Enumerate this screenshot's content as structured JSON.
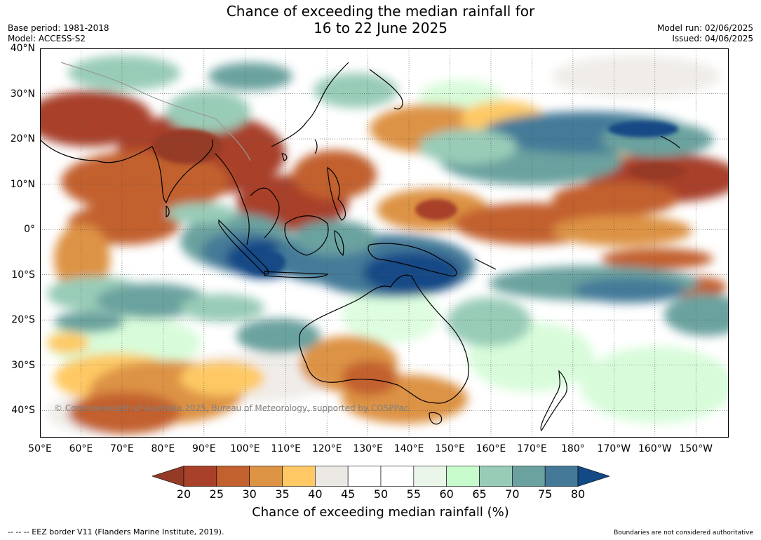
{
  "title_line1": "Chance of exceeding the median rainfall for",
  "title_line2": "16 to 22 June 2025",
  "base_period": "Base period: 1981-2018",
  "model": "Model: ACCESS-S2",
  "model_run": "Model run: 02/06/2025",
  "issued": "Issued: 04/06/2025",
  "lat_ticks": [
    "40°N",
    "30°N",
    "20°N",
    "10°N",
    "0°",
    "10°S",
    "20°S",
    "30°S",
    "40°S"
  ],
  "lat_values": [
    40,
    30,
    20,
    10,
    0,
    -10,
    -20,
    -30,
    -40
  ],
  "lon_ticks": [
    "50°E",
    "60°E",
    "70°E",
    "80°E",
    "90°E",
    "100°E",
    "110°E",
    "120°E",
    "130°E",
    "140°E",
    "150°E",
    "160°E",
    "170°E",
    "180°",
    "170°W",
    "160°W",
    "150°W"
  ],
  "lon_values": [
    50,
    60,
    70,
    80,
    90,
    100,
    110,
    120,
    130,
    140,
    150,
    160,
    170,
    180,
    190,
    200,
    210
  ],
  "extent": {
    "lon_min": 50,
    "lon_max": 218,
    "lat_min": -46,
    "lat_max": 40
  },
  "colorbar": {
    "ticks": [
      "20",
      "25",
      "30",
      "35",
      "40",
      "45",
      "50",
      "55",
      "60",
      "65",
      "70",
      "75",
      "80"
    ],
    "colors": [
      "#a8402a",
      "#c2602e",
      "#dd9344",
      "#fec965",
      "#ece9e4",
      "#ffffff",
      "#ffffff",
      "#e9f6e9",
      "#c8fbcb",
      "#99ccb7",
      "#6ba29f",
      "#447a98"
    ],
    "under_color": "#963a28",
    "over_color": "#134a86",
    "label": "Chance of exceeding median rainfall (%)"
  },
  "copyright": "© Commonwealth of Australia 2025, Bureau of Meteorology, supported by COSPPac",
  "footer_left": "--  --  -- EEZ border V11 (Flanders Marine Institute, 2019).",
  "footer_right": "Boundaries are not considered authoritative"
}
